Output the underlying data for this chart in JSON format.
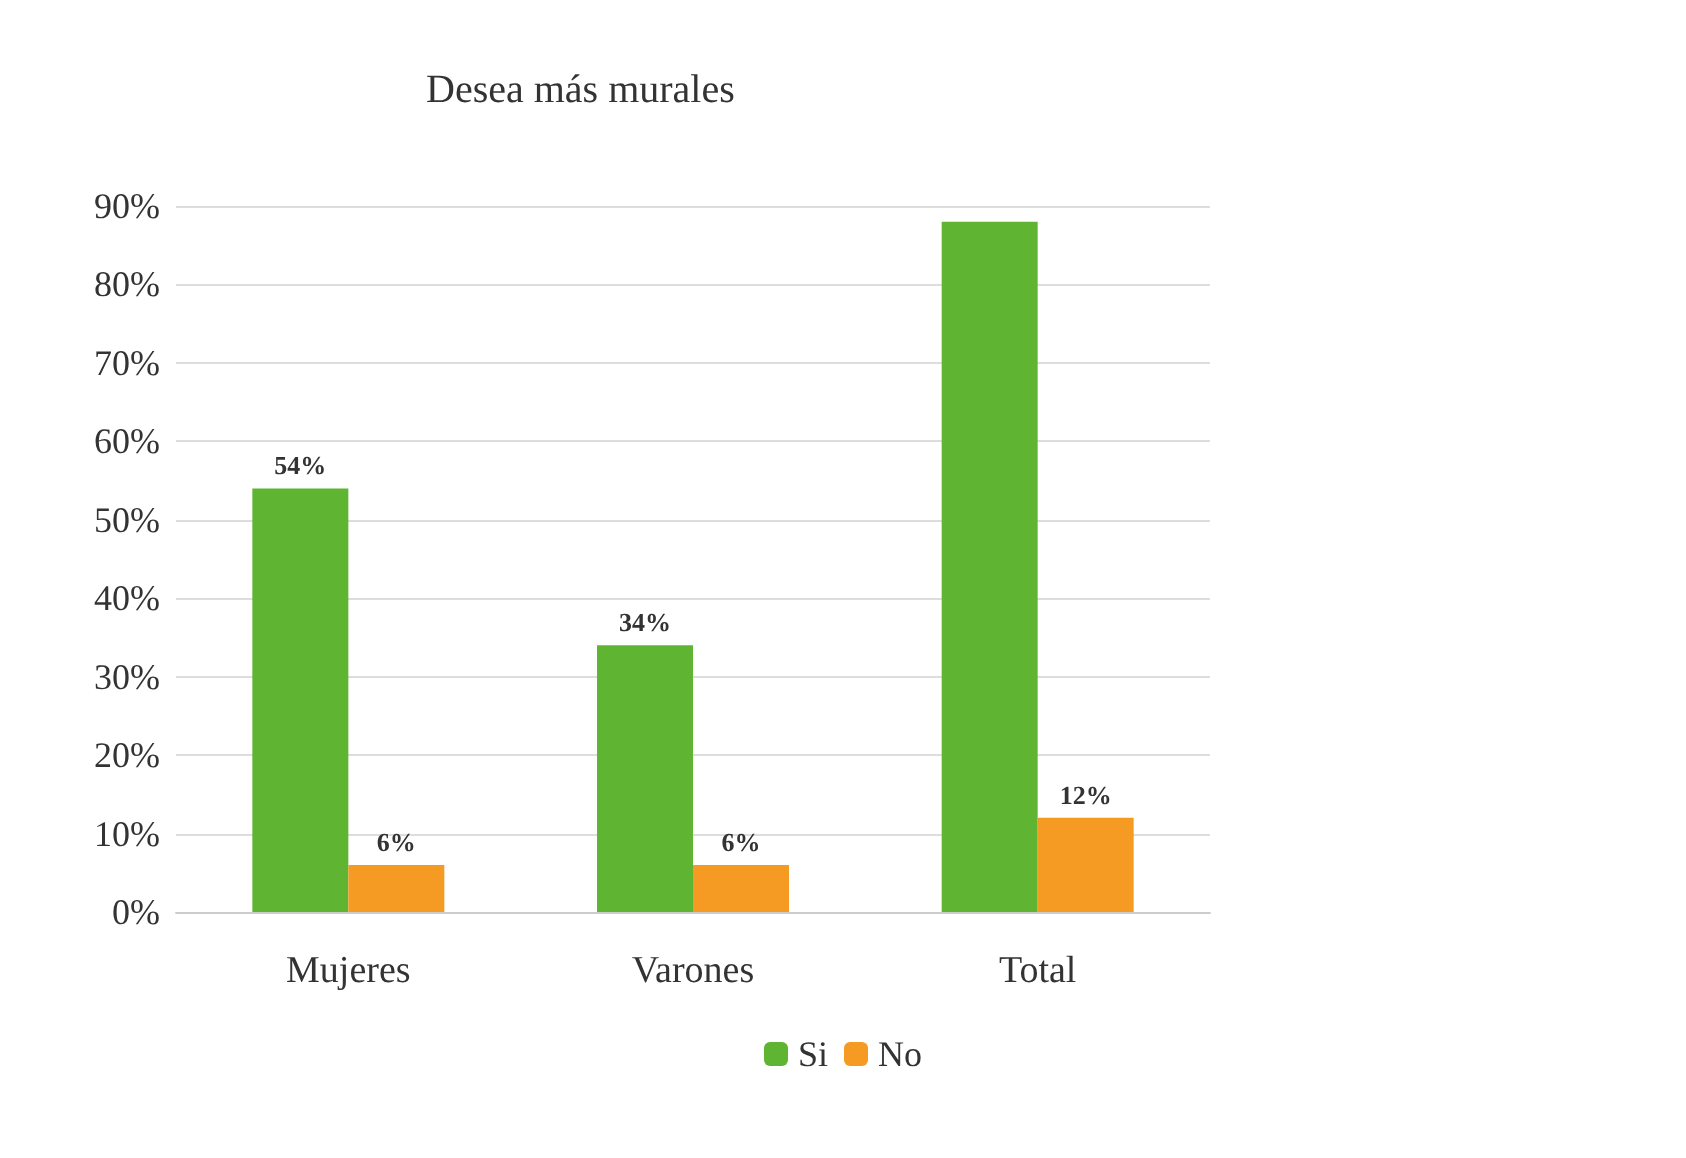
{
  "chart_data": {
    "type": "bar",
    "title": "Desea más murales",
    "categories": [
      "Mujeres",
      "Varones",
      "Total"
    ],
    "series": [
      {
        "name": "Si",
        "color": "#5fb532",
        "values": [
          54,
          34,
          88
        ],
        "value_labels": [
          "54%",
          "34%",
          null
        ]
      },
      {
        "name": "No",
        "color": "#f59a23",
        "values": [
          6,
          6,
          12
        ],
        "value_labels": [
          "6%",
          "6%",
          "12%"
        ]
      }
    ],
    "ylim": [
      0,
      90
    ],
    "yticks": [
      {
        "value": 0,
        "label": "0%"
      },
      {
        "value": 10,
        "label": "10%"
      },
      {
        "value": 20,
        "label": "20%"
      },
      {
        "value": 30,
        "label": "30%"
      },
      {
        "value": 40,
        "label": "40%"
      },
      {
        "value": 50,
        "label": "50%"
      },
      {
        "value": 60,
        "label": "60%"
      },
      {
        "value": 70,
        "label": "70%"
      },
      {
        "value": 80,
        "label": "80%"
      },
      {
        "value": 90,
        "label": "90%"
      }
    ],
    "grid": "y",
    "legend": "bottom"
  }
}
